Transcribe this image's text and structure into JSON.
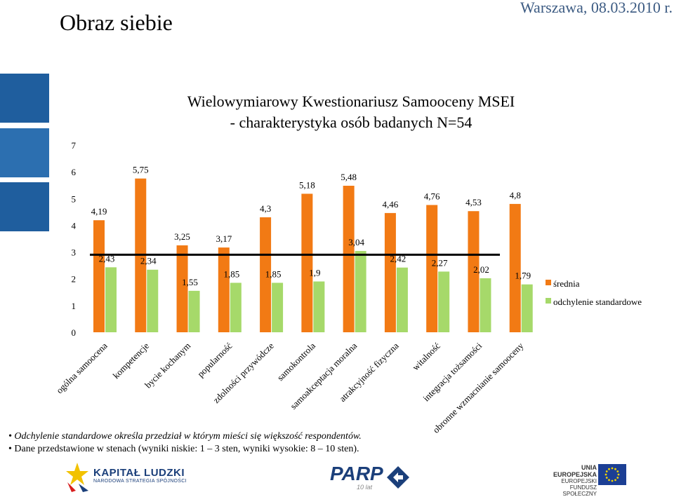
{
  "slide": {
    "title": "Obraz siebie",
    "date": "Warszawa, 08.03.2010 r."
  },
  "chart_data": {
    "type": "bar",
    "title_line1": "Wielowymiarowy Kwestionariusz Samooceny MSEI",
    "title_line2": "- charakterystyka osób badanych N=54",
    "categories": [
      "ogólna samoocena",
      "kompetencje",
      "bycie kochanym",
      "popularność",
      "zdolności przywódcze",
      "samokontrola",
      "samoakceptacja moralna",
      "atrakcyjność fizyczna",
      "witalność",
      "integracja tożsamości",
      "obronne wzmacnianie samooceny"
    ],
    "series": [
      {
        "name": "średnia",
        "color": "#f27a14",
        "values": [
          4.19,
          5.75,
          3.25,
          3.17,
          4.3,
          5.18,
          5.48,
          4.46,
          4.76,
          4.53,
          4.8
        ],
        "labels": [
          "4,19",
          "5,75",
          "3,25",
          "3,17",
          "4,3",
          "5,18",
          "5,48",
          "4,46",
          "4,76",
          "4,53",
          "4,8"
        ]
      },
      {
        "name": "odchylenie standardowe",
        "color": "#a6d96a",
        "values": [
          2.43,
          2.34,
          1.55,
          1.85,
          1.85,
          1.9,
          3.04,
          2.42,
          2.27,
          2.02,
          1.79
        ],
        "labels": [
          "2,43",
          "2,34",
          "1,55",
          "1,85",
          "1,85",
          "1,9",
          "3,04",
          "2,42",
          "2,27",
          "2,02",
          "1,79"
        ]
      }
    ],
    "yticks": [
      "0",
      "1",
      "2",
      "3",
      "4",
      "5",
      "6",
      "7"
    ],
    "ylim": [
      0,
      7
    ],
    "reference_line_value": 2.9,
    "grid": false,
    "legend_position": "right"
  },
  "notes": {
    "line1": "Odchylenie standardowe określa przedział w którym mieści się większość respondentów.",
    "line2": "Dane przedstawione w stenach (wyniki niskie: 1 – 3 sten, wyniki wysokie: 8 – 10 sten)."
  },
  "footer": {
    "kapital_main": "KAPITAŁ LUDZKI",
    "kapital_sub": "NARODOWA STRATEGIA SPÓJNOŚCI",
    "parp": "PARP",
    "parp_years": "10 lat",
    "ue_line1": "UNIA EUROPEJSKA",
    "ue_line2": "EUROPEJSKI",
    "ue_line3": "FUNDUSZ SPOŁECZNY"
  }
}
